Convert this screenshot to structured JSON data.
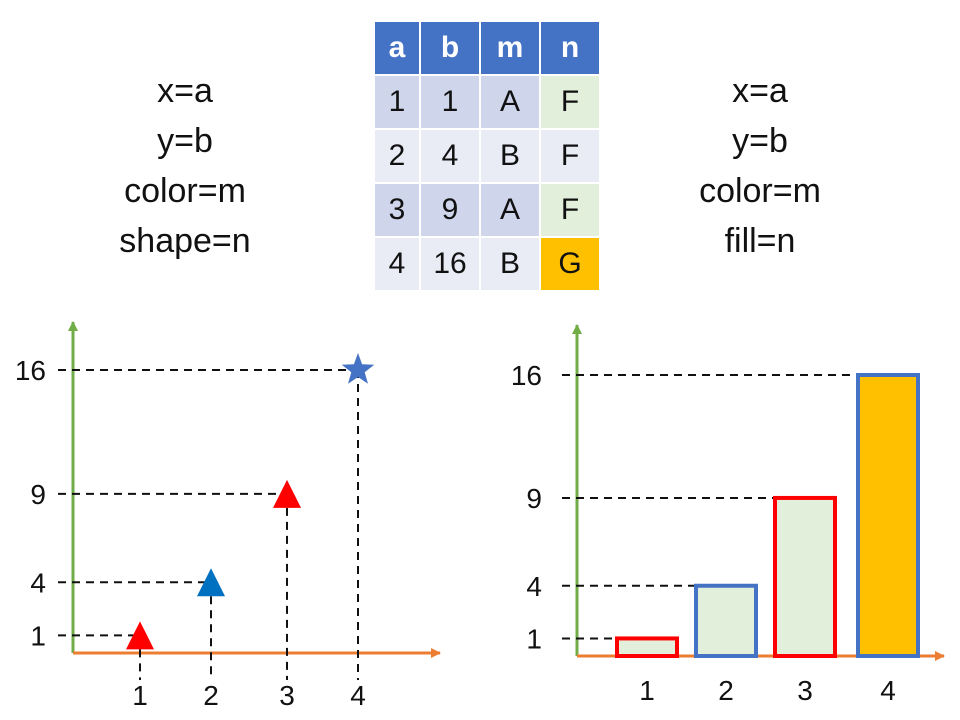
{
  "left_mapping": [
    "x=a",
    "y=b",
    "color=m",
    "shape=n"
  ],
  "right_mapping": [
    "x=a",
    "y=b",
    "color=m",
    "fill=n"
  ],
  "table": {
    "headers": [
      "a",
      "b",
      "m",
      "n"
    ],
    "rows": [
      [
        "1",
        "1",
        "A",
        "F"
      ],
      [
        "2",
        "4",
        "B",
        "F"
      ],
      [
        "3",
        "9",
        "A",
        "F"
      ],
      [
        "4",
        "16",
        "B",
        "G"
      ]
    ]
  },
  "colors": {
    "A": "#ff0000",
    "B_scatter": "#0070c0",
    "B_bar": "#4472c4",
    "F_fill": "#e2efda",
    "G_fill": "#ffc000",
    "x_axis": "#ed7d31",
    "y_axis": "#70ad47"
  },
  "shapes": {
    "F": "triangle",
    "G": "star"
  },
  "chart_data": [
    {
      "type": "scatter",
      "x": [
        1,
        2,
        3,
        4
      ],
      "y": [
        1,
        4,
        9,
        16
      ],
      "x_ticks": [
        "1",
        "2",
        "3",
        "4"
      ],
      "y_ticks": [
        "1",
        "4",
        "9",
        "16"
      ],
      "color_by": [
        "A",
        "B",
        "A",
        "B"
      ],
      "shape_by": [
        "F",
        "F",
        "F",
        "G"
      ]
    },
    {
      "type": "bar",
      "categories": [
        "1",
        "2",
        "3",
        "4"
      ],
      "values": [
        1,
        4,
        9,
        16
      ],
      "y_ticks": [
        "1",
        "4",
        "9",
        "16"
      ],
      "color_by": [
        "A",
        "B",
        "A",
        "B"
      ],
      "fill_by": [
        "F",
        "F",
        "F",
        "G"
      ]
    }
  ]
}
